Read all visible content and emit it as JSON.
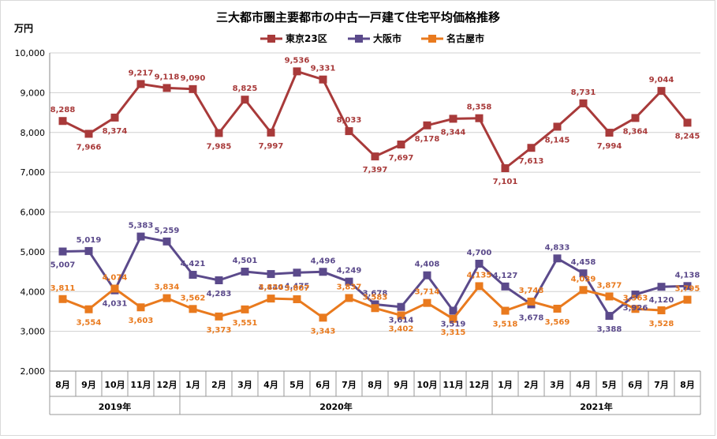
{
  "chart_data": {
    "type": "line",
    "title": "三大都市圏主要都市の中古一戸建て住宅平均価格推移",
    "ylabel": "万円",
    "ylim": [
      2000,
      10000
    ],
    "yticks": [
      2000,
      3000,
      4000,
      5000,
      6000,
      7000,
      8000,
      9000,
      10000
    ],
    "ytick_labels": [
      "2,000",
      "3,000",
      "4,000",
      "5,000",
      "6,000",
      "7,000",
      "8,000",
      "9,000",
      "10,000"
    ],
    "grid": true,
    "legend_position": "top",
    "categories": [
      "8月",
      "9月",
      "10月",
      "11月",
      "12月",
      "1月",
      "2月",
      "3月",
      "4月",
      "5月",
      "6月",
      "7月",
      "8月",
      "9月",
      "10月",
      "11月",
      "12月",
      "1月",
      "2月",
      "3月",
      "4月",
      "5月",
      "6月",
      "7月",
      "8月"
    ],
    "years": [
      {
        "label": "2019年",
        "start": 0,
        "end": 4
      },
      {
        "label": "2020年",
        "start": 5,
        "end": 16
      },
      {
        "label": "2021年",
        "start": 17,
        "end": 24
      }
    ],
    "series": [
      {
        "name": "東京23区",
        "color": "#A83A3A",
        "marker": "square",
        "values": [
          8288,
          7966,
          8374,
          9217,
          9118,
          9090,
          7985,
          8825,
          7997,
          9536,
          9331,
          8033,
          7397,
          7697,
          8178,
          8344,
          8358,
          7101,
          7613,
          8145,
          8731,
          7994,
          8364,
          9044,
          8245
        ],
        "labels": [
          "8,288",
          "7,966",
          "8,374",
          "9,217",
          "9,118",
          "9,090",
          "7,985",
          "8,825",
          "7,997",
          "9,536",
          "9,331",
          "8,033",
          "7,397",
          "7,697",
          "8,178",
          "8,344",
          "8,358",
          "7,101",
          "7,613",
          "8,145",
          "8,731",
          "7,994",
          "8,364",
          "9,044",
          "8,245"
        ]
      },
      {
        "name": "大阪市",
        "color": "#5B4A8B",
        "marker": "square",
        "values": [
          5007,
          5019,
          4031,
          5383,
          5259,
          4421,
          4283,
          4501,
          4440,
          4475,
          4496,
          4249,
          3678,
          3614,
          4408,
          3519,
          4700,
          4127,
          3678,
          4833,
          4458,
          3388,
          3926,
          4120,
          4138
        ],
        "labels": [
          "5,007",
          "5,019",
          "4,031",
          "5,383",
          "5,259",
          "4,421",
          "4,283",
          "4,501",
          "4,440",
          "4,475",
          "4,496",
          "4,249",
          "3,678",
          "3,614",
          "4,408",
          "3,519",
          "4,700",
          "4,127",
          "3,678",
          "4,833",
          "4,458",
          "3,388",
          "3,926",
          "4,120",
          "4,138"
        ]
      },
      {
        "name": "名古屋市",
        "color": "#E97A1E",
        "marker": "square",
        "values": [
          3811,
          3554,
          4074,
          3603,
          3834,
          3562,
          3373,
          3551,
          3824,
          3807,
          3343,
          3837,
          3583,
          3402,
          3714,
          3315,
          4135,
          3518,
          3748,
          3569,
          4039,
          3877,
          3563,
          3528,
          3795
        ],
        "labels": [
          "3,811",
          "3,554",
          "4,074",
          "3,603",
          "3,834",
          "3,562",
          "3,373",
          "3,551",
          "3,824",
          "3,807",
          "3,343",
          "3,837",
          "3,583",
          "3,402",
          "3,714",
          "3,315",
          "4,135",
          "3,518",
          "3,748",
          "3,569",
          "4,039",
          "3,877",
          "3,563",
          "3,528",
          "3,795"
        ]
      }
    ]
  }
}
